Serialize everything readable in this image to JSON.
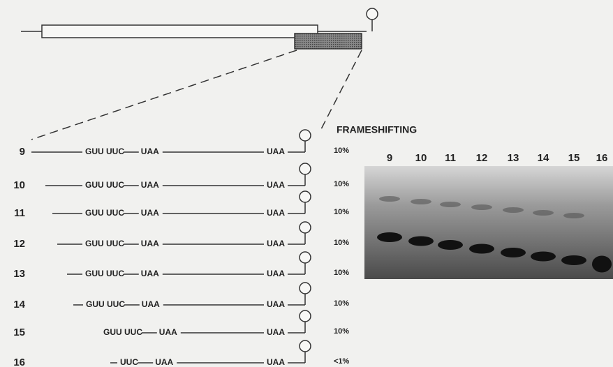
{
  "title": "FRAMESHIFTING",
  "rows": [
    {
      "label": "9",
      "codons": "GUU UUC",
      "stop1": "UAA",
      "stop2": "UAA",
      "frameshift": "10%"
    },
    {
      "label": "10",
      "codons": "GUU UUC",
      "stop1": "UAA",
      "stop2": "UAA",
      "frameshift": "10%"
    },
    {
      "label": "11",
      "codons": "GUU UUC",
      "stop1": "UAA",
      "stop2": "UAA",
      "frameshift": "10%"
    },
    {
      "label": "12",
      "codons": "GUU UUC",
      "stop1": "UAA",
      "stop2": "UAA",
      "frameshift": "10%"
    },
    {
      "label": "13",
      "codons": "GUU UUC",
      "stop1": "UAA",
      "stop2": "UAA",
      "frameshift": "10%"
    },
    {
      "label": "14",
      "codons": "GUU UUC",
      "stop1": "UAA",
      "stop2": "UAA",
      "frameshift": "10%"
    },
    {
      "label": "15",
      "codons": "GUU UUC",
      "stop1": "UAA",
      "stop2": "UAA",
      "frameshift": "10%"
    },
    {
      "label": "16",
      "codons": "UUC",
      "stop1": "UAA",
      "stop2": "UAA",
      "frameshift": "<1%"
    }
  ],
  "gel_lanes": [
    "9",
    "10",
    "11",
    "12",
    "13",
    "14",
    "15",
    "16"
  ]
}
